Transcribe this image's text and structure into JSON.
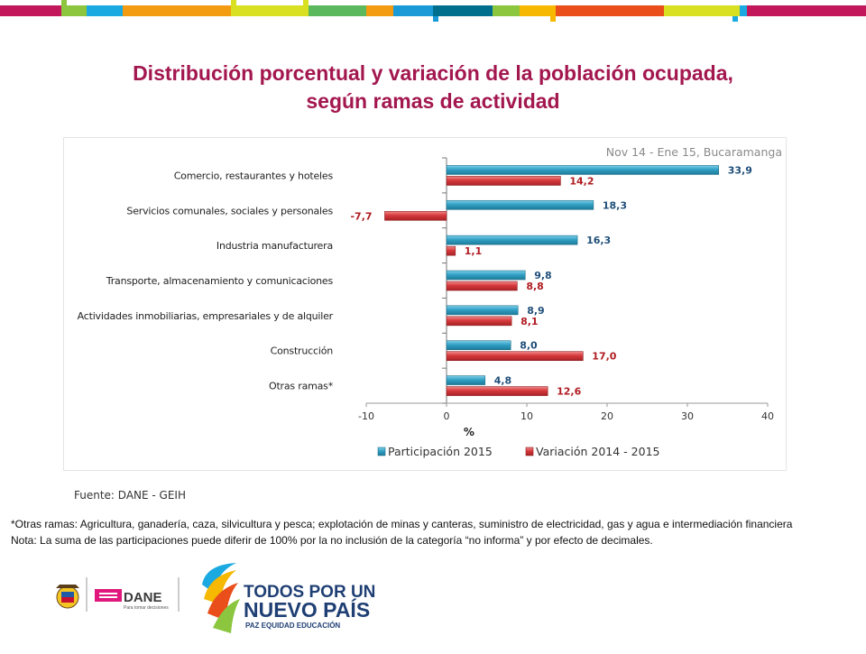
{
  "colors": {
    "accent": "#a3174f",
    "series_participacion": "#31a0c4",
    "series_variacion": "#d6393c",
    "label_participacion": "#1f4e79",
    "label_variacion": "#b01c22",
    "topbar": [
      "#c2185b",
      "#8cc63f",
      "#1aa9e1",
      "#f39c12",
      "#d9e021",
      "#5cb85c",
      "#1a9bd7",
      "#f6b800",
      "#e94e1b",
      "#006f8e"
    ]
  },
  "title": {
    "line1": "Distribución porcentual  y variación de la población ocupada,",
    "line2": "según ramas de actividad"
  },
  "chart_data": {
    "type": "bar",
    "orientation": "horizontal",
    "annotation": "Nov 14 - Ene 15, Bucaramanga",
    "categories": [
      "Comercio, restaurantes y hoteles",
      "Servicios comunales, sociales y personales",
      "Industria manufacturera",
      "Transporte, almacenamiento y comunicaciones",
      "Actividades inmobiliarias, empresariales y de alquiler",
      "Construcción",
      "Otras ramas*"
    ],
    "series": [
      {
        "name": "Participación 2015",
        "values": [
          33.9,
          18.3,
          16.3,
          9.8,
          8.9,
          8.0,
          4.8
        ],
        "labels": [
          "33,9",
          "18,3",
          "16,3",
          "9,8",
          "8,9",
          "8,0",
          "4,8"
        ]
      },
      {
        "name": "Variación 2014 - 2015",
        "values": [
          14.2,
          -7.7,
          1.1,
          8.8,
          8.1,
          17.0,
          12.6
        ],
        "labels": [
          "14,2",
          "-7,7",
          "1,1",
          "8,8",
          "8,1",
          "17,0",
          "12,6"
        ]
      }
    ],
    "xlabel": "%",
    "xlim": [
      -10,
      40
    ],
    "xticks": [
      -10,
      0,
      10,
      20,
      30,
      40
    ],
    "xtick_labels": [
      "-10",
      "0",
      "10",
      "20",
      "30",
      "40"
    ],
    "grid": false,
    "legend_position": "bottom"
  },
  "source": "Fuente: DANE - GEIH",
  "notes": {
    "line1": "*Otras ramas: Agricultura, ganadería,  caza, silvicultura y pesca; explotación de minas y canteras, suministro de electricidad, gas y agua e intermediación financiera",
    "line2": "Nota: La suma de las participaciones puede diferir de 100%  por la no inclusión de la categoría “no informa” y por efecto de decimales."
  },
  "logos": {
    "dane_name": "DANE",
    "dane_tagline": "Para tomar decisiones",
    "gov_line1": "TODOS POR UN",
    "gov_line2": "NUEVO PAÍS",
    "gov_line3": "PAZ  EQUIDAD  EDUCACIÓN"
  }
}
